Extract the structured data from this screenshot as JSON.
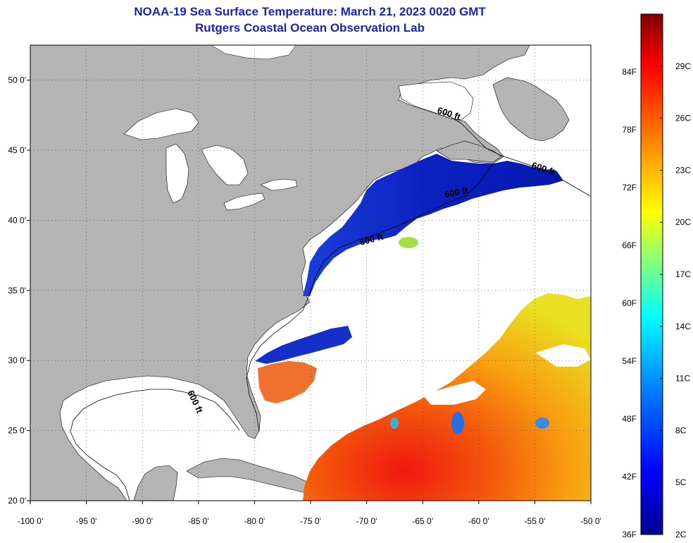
{
  "title_line1": "NOAA-19 Sea Surface Temperature:  March 21, 2023 0020 GMT",
  "title_line2": "Rutgers Coastal Ocean Observation Lab",
  "map": {
    "lon_labels": [
      "-100 0'",
      "-95 0'",
      "-90 0'",
      "-85 0'",
      "-80 0'",
      "-75 0'",
      "-70 0'",
      "-65 0'",
      "-60 0'",
      "-55 0'",
      "-50 0'"
    ],
    "lat_labels": [
      "50 0'",
      "45 0'",
      "40 0'",
      "35 0'",
      "30 0'",
      "25 0'",
      "20 0'"
    ],
    "lon_range": [
      -100,
      -50
    ],
    "lat_range": [
      20,
      52.5
    ],
    "contour_labels": [
      "600 ft",
      "600 ft",
      "600 ft",
      "600 ft",
      "600 ft"
    ],
    "colors": {
      "land": "#b4b4b4",
      "cloud": "#ffffff",
      "cold": "#0a1eb4",
      "warm": "#f04a10"
    }
  },
  "colorbar": {
    "fahrenheit": [
      "84F",
      "78F",
      "72F",
      "66F",
      "60F",
      "54F",
      "48F",
      "42F",
      "36F"
    ],
    "celsius": [
      "29C",
      "26C",
      "23C",
      "20C",
      "17C",
      "14C",
      "11C",
      "8C",
      "5C",
      "2C"
    ],
    "colors": [
      "#000090",
      "#0000ff",
      "#0080ff",
      "#00ffff",
      "#80ff80",
      "#ffff00",
      "#ff8000",
      "#ff0000",
      "#800000"
    ]
  }
}
